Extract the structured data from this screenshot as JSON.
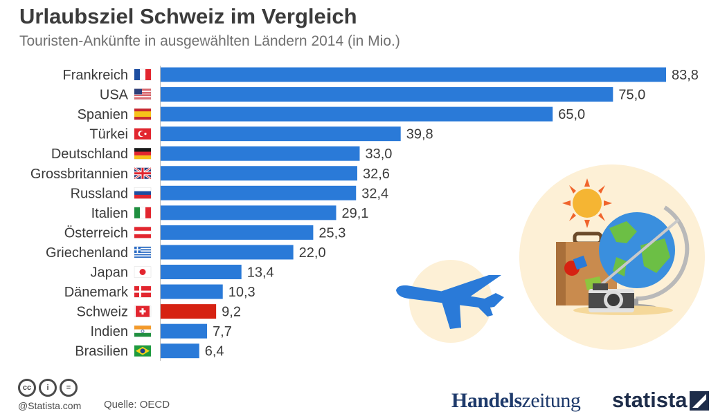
{
  "title": "Urlaubsziel Schweiz im Vergleich",
  "subtitle": "Touristen-Ankünfte in ausgewählten Ländern 2014 (in Mio.)",
  "chart_data": {
    "type": "bar",
    "orientation": "horizontal",
    "categories": [
      "Frankreich",
      "USA",
      "Spanien",
      "Türkei",
      "Deutschland",
      "Grossbritannien",
      "Russland",
      "Italien",
      "Österreich",
      "Griechenland",
      "Japan",
      "Dänemark",
      "Schweiz",
      "Indien",
      "Brasilien"
    ],
    "values": [
      83.8,
      75.0,
      65.0,
      39.8,
      33.0,
      32.6,
      32.4,
      29.1,
      25.3,
      22.0,
      13.4,
      10.3,
      9.2,
      7.7,
      6.4
    ],
    "value_labels": [
      "83,8",
      "75,0",
      "65,0",
      "39,8",
      "33,0",
      "32,6",
      "32,4",
      "29,1",
      "25,3",
      "22,0",
      "13,4",
      "10,3",
      "9,2",
      "7,7",
      "6,4"
    ],
    "xlim": [
      0,
      83.8
    ],
    "grid": false,
    "bar_color": "#2a7ad8",
    "highlight_color": "#d62212",
    "highlight_category": "Schweiz"
  },
  "flags": [
    "flag-france-icon",
    "flag-usa-icon",
    "flag-spain-icon",
    "flag-turkey-icon",
    "flag-germany-icon",
    "flag-uk-icon",
    "flag-russia-icon",
    "flag-italy-icon",
    "flag-austria-icon",
    "flag-greece-icon",
    "flag-japan-icon",
    "flag-denmark-icon",
    "flag-switzerland-icon",
    "flag-india-icon",
    "flag-brazil-icon"
  ],
  "footer": {
    "copyright": "@Statista.com",
    "source": "Quelle: OECD",
    "brand_hz_bold": "Handels",
    "brand_hz_light": "zeitung",
    "brand_statista": "statista"
  }
}
